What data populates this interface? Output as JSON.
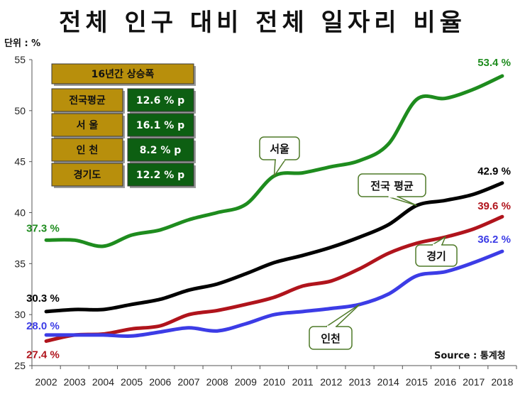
{
  "title": "전체 인구 대비 전체 일자리 비율",
  "unit": "단위 : %",
  "source": "Source : 통계청",
  "colors": {
    "seoul": "#1e8c1e",
    "national": "#000000",
    "gyeonggi": "#b0141c",
    "incheon": "#3c3ce6",
    "table_label_bg": "#b88f0c",
    "table_value_bg": "#0d5f12"
  },
  "growth_table": {
    "header": "16년간 상승폭",
    "rows": [
      {
        "label": "전국평균",
        "value": "12.6 % p"
      },
      {
        "label": "서 울",
        "value": "16.1 % p"
      },
      {
        "label": "인 천",
        "value": "8.2 % p"
      },
      {
        "label": "경기도",
        "value": "12.2 % p"
      }
    ]
  },
  "chart_data": {
    "type": "line",
    "title": "전체 인구 대비 전체 일자리 비율",
    "xlabel": "",
    "ylabel": "단위 : %",
    "ylim": [
      25,
      55
    ],
    "yticks": [
      25,
      30,
      35,
      40,
      45,
      50,
      55
    ],
    "grid": false,
    "categories": [
      "2002",
      "2003",
      "2004",
      "2005",
      "2006",
      "2007",
      "2008",
      "2009",
      "2010",
      "2011",
      "2012",
      "2013",
      "2014",
      "2015",
      "2016",
      "2017",
      "2018"
    ],
    "series": [
      {
        "key": "seoul",
        "name": "서울",
        "color": "#1e8c1e",
        "values": [
          37.3,
          37.3,
          36.7,
          37.8,
          38.3,
          39.3,
          40.0,
          40.8,
          43.6,
          43.9,
          44.5,
          45.1,
          46.7,
          51.1,
          51.2,
          52.1,
          53.4
        ],
        "start_label": "37.3 %",
        "end_label": "53.4 %"
      },
      {
        "key": "national",
        "name": "전국 평균",
        "color": "#000000",
        "values": [
          30.3,
          30.5,
          30.5,
          31.0,
          31.5,
          32.4,
          33.0,
          34.0,
          35.1,
          35.8,
          36.6,
          37.6,
          38.8,
          40.7,
          41.2,
          41.8,
          42.9
        ],
        "start_label": "30.3 %",
        "end_label": "42.9 %"
      },
      {
        "key": "gyeonggi",
        "name": "경기",
        "color": "#b0141c",
        "values": [
          27.4,
          28.0,
          28.1,
          28.6,
          28.9,
          30.0,
          30.4,
          31.0,
          31.7,
          32.8,
          33.3,
          34.5,
          36.0,
          37.0,
          37.6,
          38.4,
          39.6
        ],
        "start_label": "27.4 %",
        "end_label": "39.6 %"
      },
      {
        "key": "incheon",
        "name": "인천",
        "color": "#3c3ce6",
        "values": [
          28.0,
          28.0,
          28.0,
          27.9,
          28.3,
          28.7,
          28.4,
          29.1,
          30.0,
          30.3,
          30.6,
          31.0,
          32.0,
          33.8,
          34.2,
          35.1,
          36.2
        ],
        "start_label": "28.0 %",
        "end_label": "36.2 %"
      }
    ],
    "callouts": [
      {
        "series": "seoul",
        "text": "서울"
      },
      {
        "series": "national",
        "text": "전국 평균"
      },
      {
        "series": "gyeonggi",
        "text": "경기"
      },
      {
        "series": "incheon",
        "text": "인천"
      }
    ]
  }
}
